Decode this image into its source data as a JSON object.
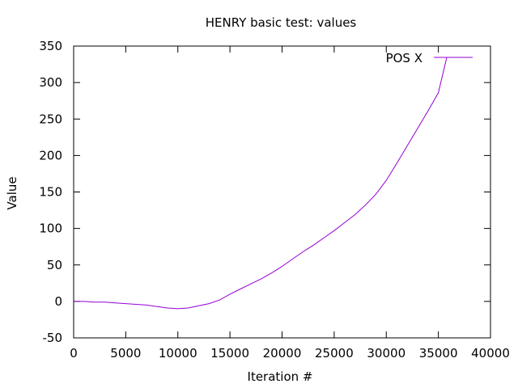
{
  "chart_data": {
    "type": "line",
    "title": "HENRY basic test: values",
    "xlabel": "Iteration #",
    "ylabel": "Value",
    "xlim": [
      0,
      40000
    ],
    "ylim": [
      -50,
      350
    ],
    "xticks": [
      0,
      5000,
      10000,
      15000,
      20000,
      25000,
      30000,
      35000,
      40000
    ],
    "yticks": [
      -50,
      0,
      50,
      100,
      150,
      200,
      250,
      300,
      350
    ],
    "grid": false,
    "legend_position": "top-right",
    "series": [
      {
        "name": "POS X",
        "color": "#9400d3",
        "x": [
          0,
          1000,
          2000,
          3000,
          4000,
          5000,
          6000,
          7000,
          8000,
          9000,
          10000,
          11000,
          12000,
          13000,
          14000,
          15000,
          16000,
          17000,
          18000,
          19000,
          20000,
          21000,
          22000,
          23000,
          24000,
          25000,
          26000,
          27000,
          28000,
          29000,
          30000,
          31000,
          32000,
          33000,
          34000,
          35000,
          35800
        ],
        "y": [
          0,
          0,
          -1,
          -1,
          -2,
          -3,
          -4,
          -5,
          -7,
          -9,
          -10,
          -9,
          -6,
          -3,
          2,
          10,
          17,
          24,
          31,
          39,
          48,
          58,
          68,
          77,
          87,
          97,
          108,
          119,
          132,
          147,
          166,
          189,
          213,
          237,
          261,
          286,
          334
        ]
      }
    ]
  }
}
